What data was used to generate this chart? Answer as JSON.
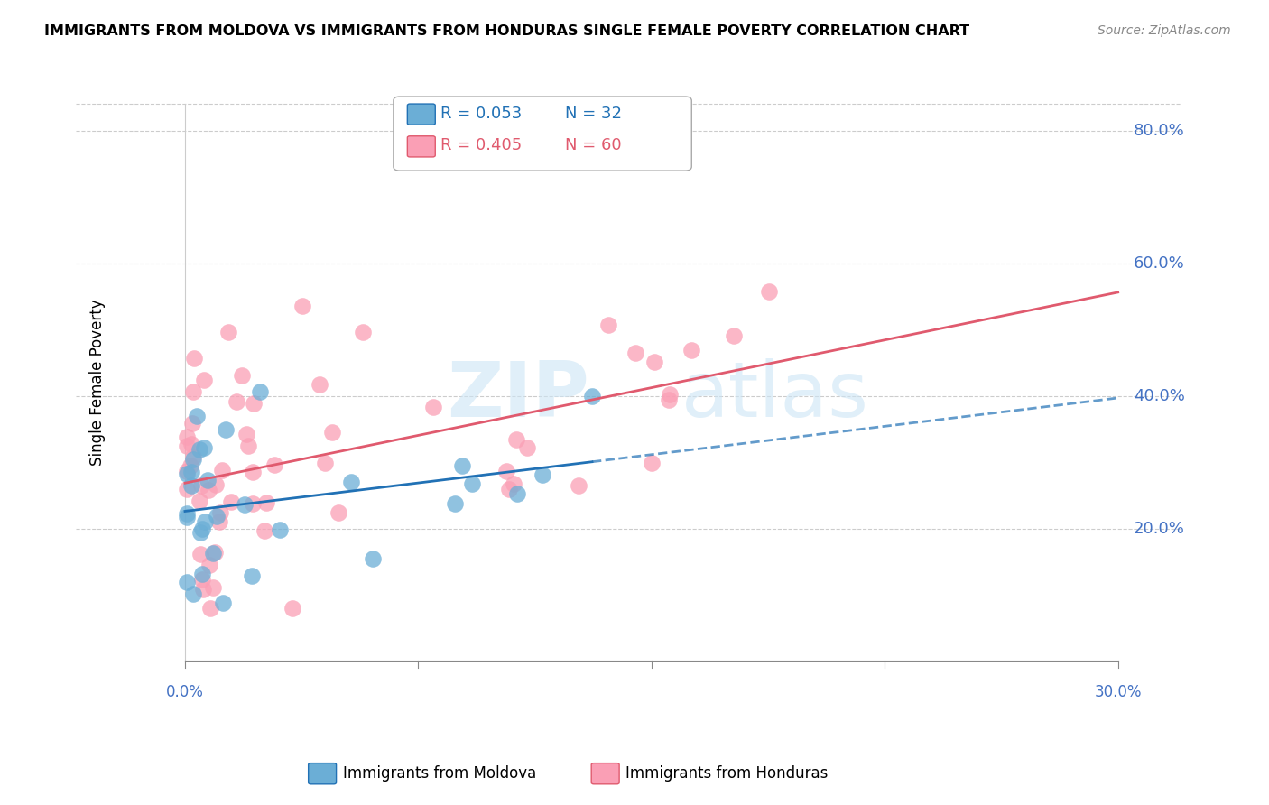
{
  "title": "IMMIGRANTS FROM MOLDOVA VS IMMIGRANTS FROM HONDURAS SINGLE FEMALE POVERTY CORRELATION CHART",
  "source": "Source: ZipAtlas.com",
  "ylabel": "Single Female Poverty",
  "xlim": [
    0.0,
    30.0
  ],
  "ylim": [
    0.0,
    85.0
  ],
  "right_yticks": [
    20.0,
    40.0,
    60.0,
    80.0
  ],
  "moldova_color": "#6baed6",
  "honduras_color": "#fa9fb5",
  "moldova_line_color": "#2171b5",
  "honduras_line_color": "#e05a6e",
  "moldova_R": 0.053,
  "moldova_N": 32,
  "honduras_R": 0.405,
  "honduras_N": 60
}
